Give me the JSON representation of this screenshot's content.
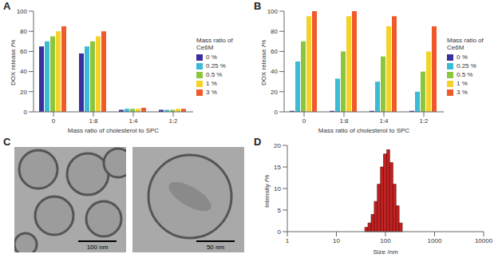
{
  "chart_data": [
    {
      "type": "bar",
      "title": "A",
      "x_label": "Mass ratio of cholesterol to SPC",
      "y_label": "DOX release /%",
      "series_label": "Mass ratio of Ce6M",
      "categories": [
        "0",
        "1:8",
        "1:4",
        "1:2"
      ],
      "series": [
        {
          "name": "0 %",
          "color": "#3a2fa0",
          "values": [
            65,
            58,
            2,
            2
          ]
        },
        {
          "name": "0.25 %",
          "color": "#3bbbd6",
          "values": [
            70,
            65,
            3,
            2
          ]
        },
        {
          "name": "0.5 %",
          "color": "#8cc63f",
          "values": [
            75,
            70,
            3,
            2
          ]
        },
        {
          "name": "1 %",
          "color": "#f6d12a",
          "values": [
            80,
            75,
            3,
            3
          ]
        },
        {
          "name": "3 %",
          "color": "#f0592a",
          "values": [
            85,
            80,
            4,
            3
          ]
        }
      ],
      "ylim": [
        0,
        100
      ],
      "yticks": [
        0,
        20,
        40,
        60,
        80,
        100
      ],
      "grid": false,
      "legend": "right"
    },
    {
      "type": "bar",
      "title": "B",
      "x_label": "Mass ratio of cholesterol to SPC",
      "y_label": "DOX release /%",
      "series_label": "Mass ratio of Ce6M",
      "categories": [
        "0",
        "1:8",
        "1:4",
        "1:2"
      ],
      "series": [
        {
          "name": "0 %",
          "color": "#3a2fa0",
          "values": [
            1,
            1,
            1,
            1
          ]
        },
        {
          "name": "0.25 %",
          "color": "#3bbbd6",
          "values": [
            50,
            33,
            30,
            20
          ]
        },
        {
          "name": "0.5 %",
          "color": "#8cc63f",
          "values": [
            70,
            60,
            55,
            40
          ]
        },
        {
          "name": "1 %",
          "color": "#f6d12a",
          "values": [
            95,
            95,
            85,
            60
          ]
        },
        {
          "name": "3 %",
          "color": "#f0592a",
          "values": [
            100,
            100,
            95,
            85
          ]
        }
      ],
      "ylim": [
        0,
        100
      ],
      "yticks": [
        0,
        20,
        40,
        60,
        80,
        100
      ],
      "grid": false,
      "legend": "right"
    },
    {
      "type": "image",
      "title": "C",
      "images": [
        {
          "scale_bar": "100 nm"
        },
        {
          "scale_bar": "50 nm"
        }
      ]
    },
    {
      "type": "histogram",
      "title": "D",
      "x_label": "Size /nm",
      "y_label": "Intensity /%",
      "color": "#c8201f",
      "bins": [
        38,
        44,
        51,
        59,
        68,
        79,
        91,
        106,
        122,
        142,
        164,
        190,
        220
      ],
      "values": [
        1,
        2,
        4,
        7,
        11,
        15,
        18,
        19,
        16,
        11,
        6,
        2
      ],
      "xlim": [
        1,
        10000
      ],
      "xticks": [
        1,
        10,
        100,
        1000,
        10000
      ],
      "log": "x",
      "ylim": [
        0,
        20
      ],
      "yticks": [
        0,
        5,
        10,
        15,
        20
      ],
      "grid": false
    }
  ]
}
